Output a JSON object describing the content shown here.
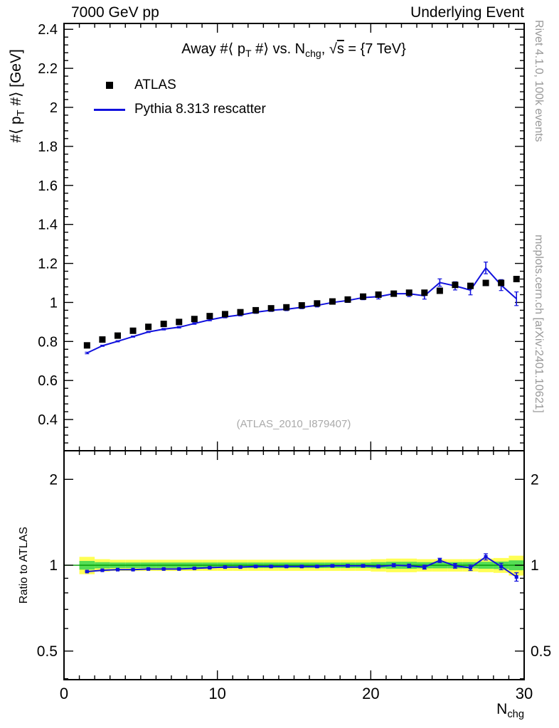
{
  "header": {
    "left": "7000 GeV pp",
    "right": "Underlying Event"
  },
  "side_notes": {
    "top_right": "Rivet 4.1.0,  100k events",
    "bottom_right": "mcplots.cern.ch [arXiv:2401.10621]"
  },
  "labels": {
    "y": {
      "p1": "#⟨ p",
      "sub": "T",
      "p2": " #⟩ [GeV]"
    },
    "ratio_y": "Ratio to ATLAS",
    "x": {
      "p1": "N",
      "sub": "chg"
    }
  },
  "title": {
    "p1": "Away #⟨ p",
    "sub1": "T",
    "p2": " #⟩ vs. N",
    "sub2": "chg",
    "p3": ", ",
    "sqrt": "√",
    "sqrt_arg": "s",
    "p4": " = {7 TeV}"
  },
  "legend": {
    "atlas": "ATLAS",
    "model": "Pythia 8.313 rescatter"
  },
  "watermark": "(ATLAS_2010_I879407)",
  "colors": {
    "model_line": "#1111dd",
    "band_yellow": "#ffff55",
    "band_green": "#55dd55",
    "unity_line": "#009900",
    "marker_black": "#000000",
    "note_gray": "#999999",
    "watermark_gray": "#aaaaaa"
  },
  "chart_data": {
    "type": "line",
    "title": "Away <pT> vs. Nchg, sqrt(s) = {7 TeV}",
    "xlabel": "Nchg",
    "ylabel": "<pT> [GeV]",
    "ratio_ylabel": "Ratio to ATLAS",
    "legend": [
      "ATLAS",
      "Pythia 8.313 rescatter"
    ],
    "xlim": [
      0,
      30
    ],
    "x_major_ticks": [
      0,
      10,
      20,
      30
    ],
    "x_minor_step": 1,
    "main_ylim": [
      0.24,
      2.43
    ],
    "main_yticks_major": [
      0.4,
      0.6,
      0.8,
      1,
      1.2,
      1.4,
      1.6,
      1.8,
      2,
      2.2,
      2.4
    ],
    "main_ytick_minor_step": 0.04,
    "ratio_scale": "log",
    "ratio_ylim": [
      0.397,
      2.52
    ],
    "ratio_yticks_major": [
      0.5,
      1,
      2
    ],
    "ratio_yticks_minor": [
      0.4,
      0.6,
      0.7,
      0.8,
      0.9
    ],
    "bin_width": 1,
    "x": [
      1.5,
      2.5,
      3.5,
      4.5,
      5.5,
      6.5,
      7.5,
      8.5,
      9.5,
      10.5,
      11.5,
      12.5,
      13.5,
      14.5,
      15.5,
      16.5,
      17.5,
      18.5,
      19.5,
      20.5,
      21.5,
      22.5,
      23.5,
      24.5,
      25.5,
      26.5,
      27.5,
      28.5,
      29.5
    ],
    "series": [
      {
        "name": "ATLAS",
        "marker": "black-square",
        "values": [
          0.78,
          0.81,
          0.83,
          0.855,
          0.875,
          0.89,
          0.9,
          0.915,
          0.93,
          0.94,
          0.95,
          0.96,
          0.97,
          0.975,
          0.985,
          0.995,
          1.005,
          1.015,
          1.03,
          1.04,
          1.045,
          1.05,
          1.05,
          1.06,
          1.09,
          1.085,
          1.1,
          1.1,
          1.12
        ]
      },
      {
        "name": "Pythia 8.313 rescatter",
        "marker": "blue-line",
        "values": [
          0.741,
          0.778,
          0.801,
          0.825,
          0.849,
          0.863,
          0.873,
          0.892,
          0.911,
          0.926,
          0.936,
          0.95,
          0.96,
          0.965,
          0.975,
          0.985,
          1.0,
          1.01,
          1.025,
          1.03,
          1.045,
          1.045,
          1.034,
          1.102,
          1.085,
          1.063,
          1.177,
          1.089,
          1.019
        ],
        "yerr": [
          0.004,
          0.003,
          0.003,
          0.003,
          0.003,
          0.004,
          0.004,
          0.004,
          0.005,
          0.005,
          0.005,
          0.006,
          0.006,
          0.007,
          0.007,
          0.008,
          0.009,
          0.01,
          0.011,
          0.012,
          0.013,
          0.015,
          0.017,
          0.019,
          0.021,
          0.024,
          0.03,
          0.028,
          0.035
        ]
      }
    ],
    "ratio": {
      "reference": "ATLAS",
      "values": [
        0.95,
        0.96,
        0.965,
        0.965,
        0.97,
        0.97,
        0.97,
        0.975,
        0.98,
        0.985,
        0.985,
        0.99,
        0.99,
        0.99,
        0.99,
        0.99,
        0.995,
        0.995,
        0.995,
        0.99,
        1.0,
        0.995,
        0.985,
        1.04,
        0.995,
        0.98,
        1.07,
        0.99,
        0.91
      ],
      "yerr": [
        0.005,
        0.004,
        0.004,
        0.004,
        0.004,
        0.004,
        0.004,
        0.005,
        0.005,
        0.005,
        0.006,
        0.006,
        0.006,
        0.007,
        0.007,
        0.008,
        0.009,
        0.01,
        0.011,
        0.011,
        0.013,
        0.014,
        0.016,
        0.018,
        0.019,
        0.022,
        0.027,
        0.026,
        0.031
      ],
      "band_yellow_halfwidth": [
        0.07,
        0.05,
        0.045,
        0.045,
        0.045,
        0.045,
        0.045,
        0.045,
        0.045,
        0.045,
        0.045,
        0.045,
        0.045,
        0.045,
        0.045,
        0.045,
        0.045,
        0.045,
        0.045,
        0.05,
        0.055,
        0.055,
        0.05,
        0.05,
        0.05,
        0.05,
        0.055,
        0.06,
        0.08
      ],
      "band_green_halfwidth": [
        0.035,
        0.025,
        0.022,
        0.022,
        0.022,
        0.022,
        0.022,
        0.022,
        0.022,
        0.022,
        0.022,
        0.022,
        0.022,
        0.022,
        0.022,
        0.022,
        0.022,
        0.022,
        0.022,
        0.025,
        0.028,
        0.028,
        0.025,
        0.025,
        0.025,
        0.025,
        0.028,
        0.03,
        0.04
      ]
    }
  }
}
